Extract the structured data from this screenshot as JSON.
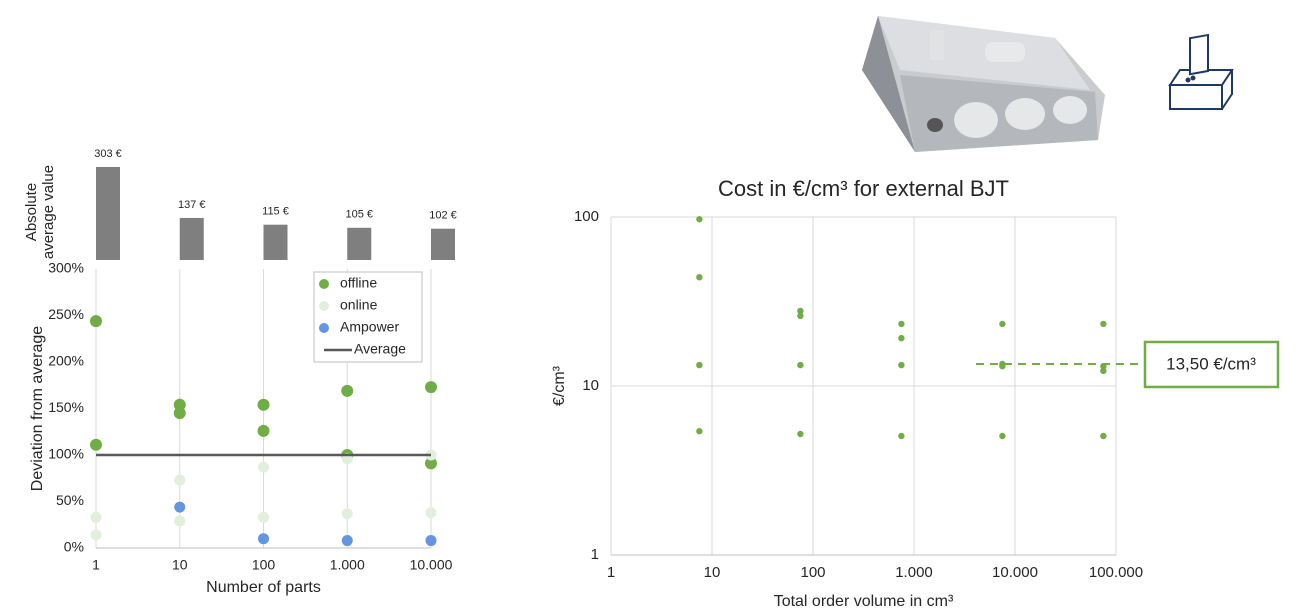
{
  "chart_data": [
    {
      "type": "bar",
      "ylabel": "Absolute average value",
      "values": [
        303,
        137,
        115,
        105,
        102
      ],
      "value_labels": [
        "303 €",
        "137 €",
        "115 €",
        "105 €",
        "102 €"
      ],
      "color": "#7f7f7f"
    },
    {
      "type": "scatter",
      "xlabel": "Number of parts",
      "ylabel": "Deviation from average",
      "xlog": true,
      "xlim": [
        1,
        10000
      ],
      "xticks": [
        1,
        10,
        100,
        {
          "value": 1000,
          "label": "1.000"
        },
        {
          "value": 10000,
          "label": "10.000"
        }
      ],
      "ylim": [
        0,
        300
      ],
      "yticks": [
        {
          "value": 0,
          "label": "0%"
        },
        {
          "value": 50,
          "label": "50%"
        },
        {
          "value": 100,
          "label": "100%"
        },
        {
          "value": 150,
          "label": "150%"
        },
        {
          "value": 200,
          "label": "200%"
        },
        {
          "value": 250,
          "label": "250%"
        },
        {
          "value": 300,
          "label": "300%"
        }
      ],
      "grid": "x",
      "legend": "upper right",
      "series": [
        {
          "name": "offline",
          "color": "#70ad47",
          "x": [
            1,
            1,
            10,
            10,
            100,
            100,
            1000,
            1000,
            10000,
            10000
          ],
          "values": [
            244,
            111,
            154,
            145,
            154,
            126,
            169,
            100,
            173,
            91
          ]
        },
        {
          "name": "online",
          "color": "#e2efda",
          "x": [
            1,
            1,
            10,
            10,
            100,
            100,
            1000,
            1000,
            10000,
            10000
          ],
          "values": [
            33,
            14,
            73,
            29,
            87,
            33,
            96,
            37,
            100,
            38
          ]
        },
        {
          "name": "Ampower",
          "color": "#6495e0",
          "x": [
            10,
            100,
            1000,
            10000
          ],
          "values": [
            44,
            10,
            8,
            8
          ]
        },
        {
          "name": "Average",
          "color": "#595959",
          "style": "line",
          "x": [
            1,
            10,
            100,
            1000,
            10000
          ],
          "values": [
            100,
            100,
            100,
            100,
            100
          ]
        }
      ]
    },
    {
      "type": "scatter",
      "title": "Cost in €/cm³ for external BJT",
      "xlabel": "Total order volume in cm³",
      "ylabel": "€/cm³",
      "xlog": true,
      "ylog": true,
      "xlim": [
        1,
        100000
      ],
      "xticks": [
        1,
        10,
        100,
        {
          "value": 1000,
          "label": "1.000"
        },
        {
          "value": 10000,
          "label": "10.000"
        },
        {
          "value": 100000,
          "label": "100.000"
        }
      ],
      "ylim": [
        1,
        100
      ],
      "yticks": [
        1,
        10,
        100
      ],
      "grid": true,
      "series": [
        {
          "color": "#70ad47",
          "x": [
            7.5,
            7.5,
            7.5,
            7.5,
            75,
            75,
            75,
            75,
            750,
            750,
            750,
            750,
            7500,
            7500,
            7500,
            7500,
            75000,
            75000,
            75000,
            75000
          ],
          "values": [
            97,
            44,
            13.3,
            5.4,
            27.8,
            26,
            13.3,
            5.2,
            23.3,
            19.2,
            13.3,
            5.06,
            23.3,
            13.5,
            13.1,
            5.06,
            23.3,
            13.1,
            12.3,
            5.06
          ]
        }
      ],
      "annotation": {
        "text": "13,50 €/cm³",
        "value": 13.5
      }
    }
  ]
}
